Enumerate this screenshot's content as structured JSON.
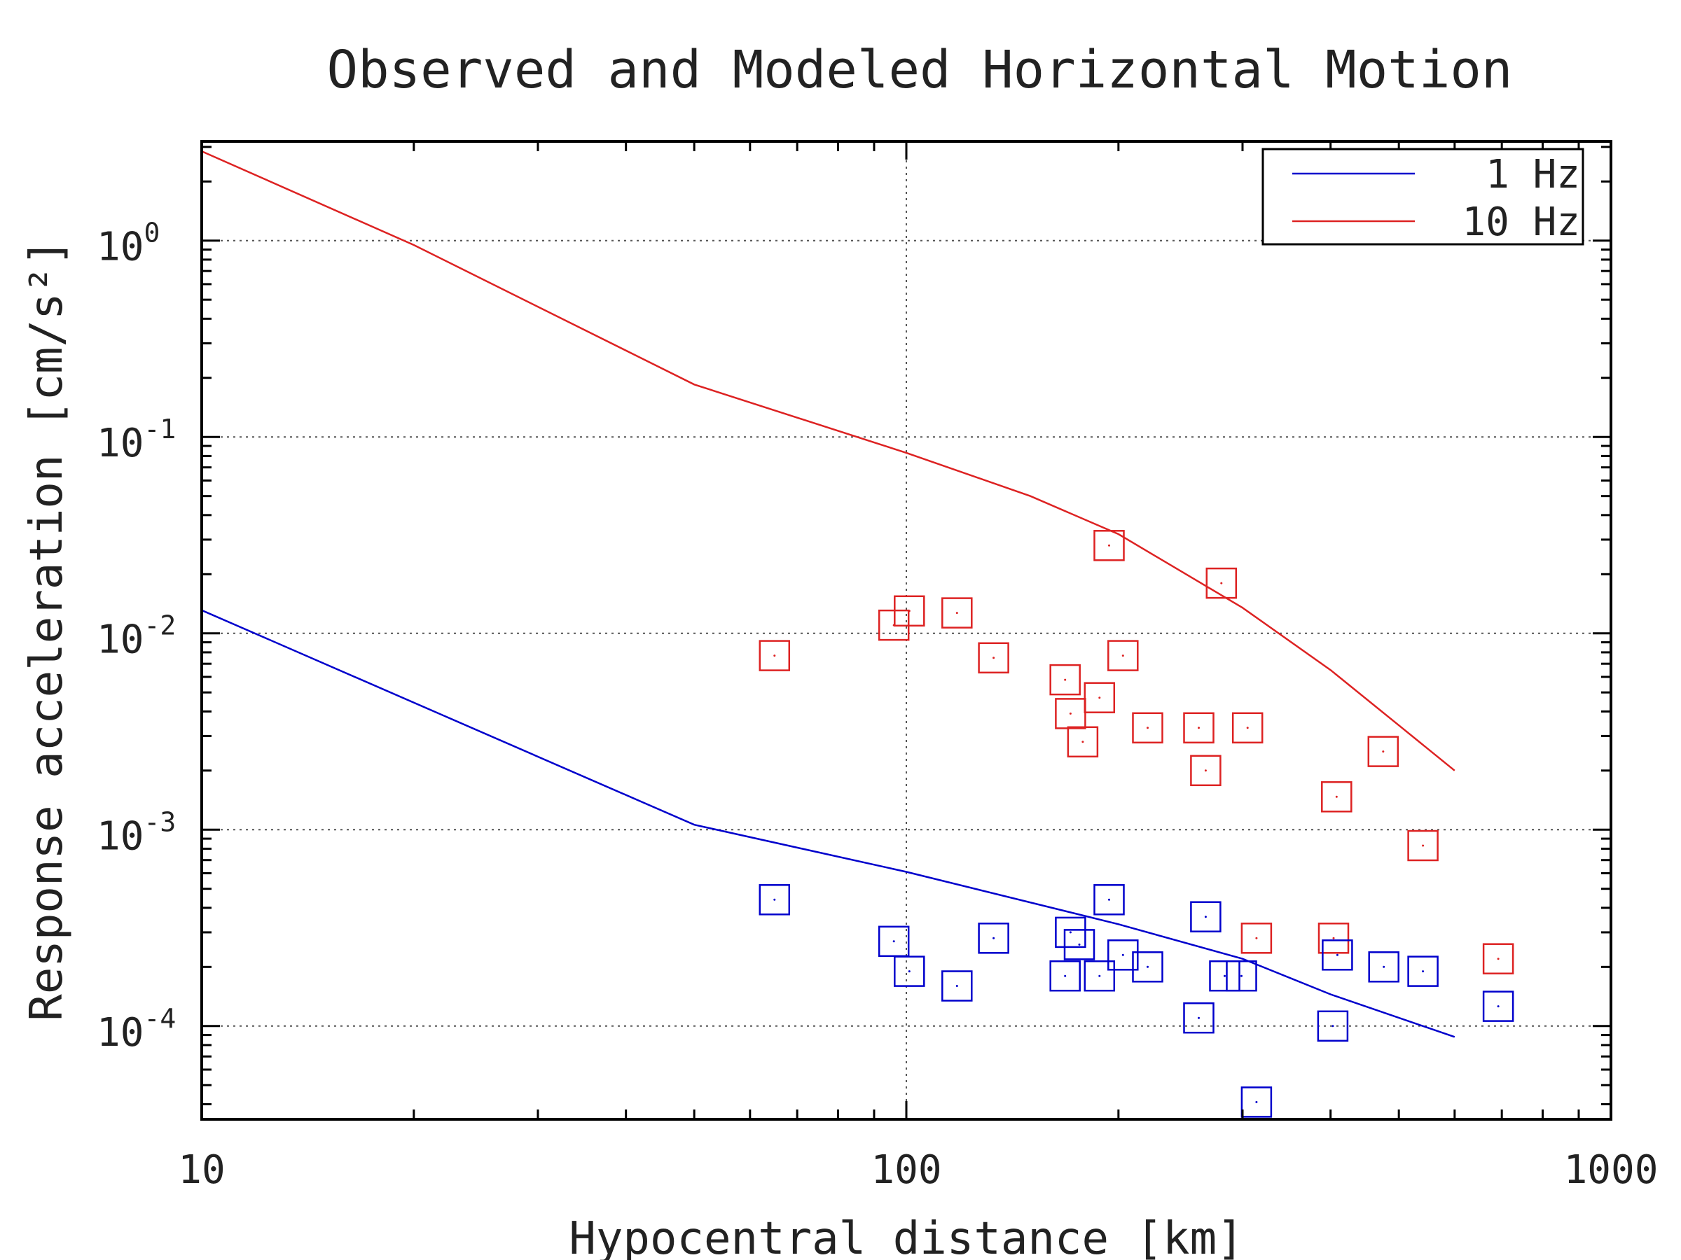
{
  "chart_data": {
    "type": "scatter",
    "title": "Observed and Modeled Horizontal Motion",
    "xlabel": "Hypocentral distance [km]",
    "ylabel": "Response acceleration [cm/s²]",
    "xscale": "log",
    "yscale": "log",
    "xlim": [
      10,
      1000
    ],
    "ylim": [
      3.35e-05,
      3.2
    ],
    "x_ticks": [
      10,
      100,
      1000
    ],
    "x_tick_labels": [
      "10",
      "100",
      "1000"
    ],
    "y_ticks": [
      0.0001,
      0.001,
      0.01,
      0.1,
      1
    ],
    "y_tick_bases": [
      "10",
      "10",
      "10",
      "10",
      "10"
    ],
    "y_tick_exponents": [
      "-4",
      "-3",
      "-2",
      "-1",
      "0"
    ],
    "grid": true,
    "legend_position": "top-right",
    "colors": {
      "1 Hz": "#0000cc",
      "10 Hz": "#dd2222"
    },
    "lines": [
      {
        "name": "1 Hz",
        "x": [
          10,
          50,
          100,
          200,
          300,
          400,
          600
        ],
        "y": [
          0.0131,
          0.00106,
          0.00061,
          0.00033,
          0.00022,
          0.000145,
          8.8e-05
        ]
      },
      {
        "name": "10 Hz",
        "x": [
          10,
          20,
          50,
          100,
          150,
          200,
          300,
          400,
          500,
          600
        ],
        "y": [
          2.85,
          0.95,
          0.185,
          0.083,
          0.05,
          0.032,
          0.0135,
          0.0065,
          0.0034,
          0.002
        ]
      }
    ],
    "observed": [
      {
        "name": "10 Hz",
        "x": [
          65,
          96,
          101,
          118,
          133,
          168,
          171,
          178,
          188,
          194,
          203,
          220,
          260,
          266,
          280,
          305,
          314,
          404,
          408,
          475,
          541,
          692
        ],
        "y": [
          0.0077,
          0.011,
          0.013,
          0.0127,
          0.0075,
          0.0058,
          0.0039,
          0.0028,
          0.0047,
          0.028,
          0.0077,
          0.0033,
          0.0033,
          0.002,
          0.018,
          0.0033,
          0.00028,
          0.00028,
          0.00147,
          0.0025,
          0.00083,
          0.00022
        ]
      },
      {
        "name": "1 Hz",
        "x": [
          65,
          96,
          101,
          118,
          133,
          168,
          171,
          176,
          188,
          194,
          203,
          220,
          260,
          266,
          283,
          299,
          314,
          403,
          409,
          476,
          541,
          692
        ],
        "y": [
          0.00044,
          0.00027,
          0.00019,
          0.00016,
          0.00028,
          0.00018,
          0.0003,
          0.00026,
          0.00018,
          0.00044,
          0.00023,
          0.0002,
          0.00011,
          0.00036,
          0.00018,
          0.00018,
          4.1e-05,
          0.0001,
          0.00023,
          0.0002,
          0.00019,
          0.000126
        ]
      }
    ]
  }
}
